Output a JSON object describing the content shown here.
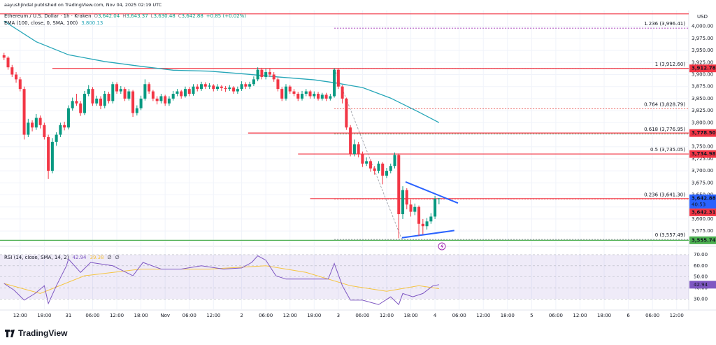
{
  "chart_data": {
    "type": "candlestick",
    "attribution": "aayushjindal published on TradingView.com, Nov 04, 2025 02:19 UTC",
    "legend": {
      "symbol": "Ethereum / U.S. Dollar · 1h · Kraken",
      "fields": [
        {
          "key": "O",
          "value": "3,642.04"
        },
        {
          "key": "H",
          "value": "3,643.37"
        },
        {
          "key": "L",
          "value": "3,630.48"
        },
        {
          "key": "C",
          "value": "3,642.88"
        }
      ],
      "change": "+0.85 (+0.02%)"
    },
    "currency": "USD",
    "brand": "TradingView",
    "up_color": "#089981",
    "down_color": "#f23645",
    "x": [
      1,
      2,
      3,
      4,
      5,
      6,
      7,
      8,
      9,
      10,
      11,
      12,
      13,
      14,
      15,
      16,
      17,
      18,
      19,
      20,
      21,
      22,
      23,
      24,
      25,
      26,
      27,
      28,
      29,
      30,
      31,
      32,
      33,
      34,
      35,
      36,
      37,
      38,
      39,
      40,
      41,
      42,
      43,
      44,
      45,
      46,
      47,
      48,
      49,
      50,
      51,
      52,
      53,
      54,
      55,
      56,
      57,
      58,
      59,
      60,
      61,
      62,
      63,
      64,
      65,
      66,
      67,
      68,
      69,
      70,
      71,
      72,
      73,
      74,
      75,
      76,
      77,
      78,
      79,
      80,
      81,
      82,
      83,
      84,
      85,
      86,
      87,
      88,
      89,
      90,
      91,
      92,
      93,
      94,
      95,
      96,
      97,
      98,
      99,
      100,
      101,
      102,
      103,
      104,
      105,
      106,
      107,
      108,
      109
    ],
    "open": [
      3940,
      3935,
      3915,
      3900,
      3890,
      3870,
      3775,
      3800,
      3790,
      3810,
      3795,
      3770,
      3700,
      3760,
      3775,
      3795,
      3790,
      3830,
      3845,
      3840,
      3820,
      3860,
      3870,
      3840,
      3850,
      3835,
      3860,
      3845,
      3880,
      3865,
      3870,
      3850,
      3865,
      3820,
      3830,
      3850,
      3880,
      3865,
      3850,
      3845,
      3855,
      3840,
      3850,
      3860,
      3865,
      3855,
      3870,
      3860,
      3875,
      3870,
      3880,
      3875,
      3877,
      3870,
      3875,
      3872,
      3870,
      3873,
      3865,
      3870,
      3880,
      3875,
      3880,
      3890,
      3910,
      3895,
      3905,
      3900,
      3890,
      3870,
      3850,
      3875,
      3865,
      3860,
      3850,
      3860,
      3865,
      3855,
      3860,
      3850,
      3858,
      3850,
      3855,
      3910,
      3875,
      3850,
      3790,
      3735,
      3755,
      3735,
      3715,
      3720,
      3705,
      3700,
      3715,
      3690,
      3700,
      3710,
      3733,
      3610,
      3660,
      3630,
      3615,
      3625,
      3590,
      3585,
      3595,
      3605,
      3642.04
    ],
    "high": [
      3945,
      3938,
      3920,
      3905,
      3895,
      3875,
      3808,
      3805,
      3818,
      3815,
      3800,
      3775,
      3768,
      3780,
      3800,
      3802,
      3836,
      3852,
      3860,
      3845,
      3866,
      3878,
      3874,
      3856,
      3855,
      3866,
      3864,
      3885,
      3884,
      3876,
      3874,
      3870,
      3868,
      3836,
      3856,
      3890,
      3884,
      3868,
      3855,
      3860,
      3858,
      3855,
      3866,
      3870,
      3868,
      3875,
      3874,
      3880,
      3880,
      3885,
      3884,
      3882,
      3880,
      3880,
      3878,
      3876,
      3878,
      3876,
      3875,
      3886,
      3884,
      3885,
      3896,
      3915,
      3914,
      3912,
      3913,
      3905,
      3894,
      3874,
      3880,
      3878,
      3870,
      3864,
      3866,
      3870,
      3868,
      3865,
      3864,
      3862,
      3862,
      3860,
      3913,
      3913,
      3878,
      3852,
      3795,
      3765,
      3760,
      3740,
      3728,
      3724,
      3710,
      3720,
      3718,
      3706,
      3715,
      3738,
      3736,
      3668,
      3664,
      3640,
      3632,
      3628,
      3600,
      3602,
      3612,
      3648,
      3643.37
    ],
    "low": [
      3930,
      3910,
      3895,
      3883,
      3865,
      3765,
      3770,
      3782,
      3785,
      3788,
      3765,
      3683,
      3695,
      3752,
      3770,
      3784,
      3786,
      3825,
      3835,
      3814,
      3816,
      3855,
      3835,
      3835,
      3828,
      3830,
      3840,
      3840,
      3860,
      3860,
      3845,
      3846,
      3812,
      3815,
      3826,
      3846,
      3860,
      3845,
      3838,
      3840,
      3835,
      3835,
      3846,
      3855,
      3850,
      3852,
      3855,
      3856,
      3865,
      3866,
      3870,
      3870,
      3865,
      3866,
      3866,
      3864,
      3866,
      3860,
      3860,
      3866,
      3870,
      3870,
      3876,
      3886,
      3890,
      3890,
      3895,
      3885,
      3865,
      3845,
      3846,
      3860,
      3855,
      3845,
      3846,
      3855,
      3850,
      3850,
      3846,
      3846,
      3845,
      3846,
      3852,
      3870,
      3840,
      3785,
      3730,
      3730,
      3728,
      3708,
      3710,
      3698,
      3692,
      3695,
      3672,
      3685,
      3695,
      3705,
      3560,
      3600,
      3620,
      3605,
      3608,
      3565,
      3568,
      3578,
      3590,
      3600,
      3630.48
    ],
    "close": [
      3935,
      3915,
      3900,
      3890,
      3870,
      3775,
      3800,
      3790,
      3810,
      3795,
      3770,
      3700,
      3760,
      3775,
      3795,
      3790,
      3830,
      3845,
      3840,
      3820,
      3860,
      3870,
      3840,
      3850,
      3835,
      3860,
      3845,
      3880,
      3865,
      3870,
      3850,
      3865,
      3820,
      3830,
      3850,
      3880,
      3865,
      3850,
      3845,
      3855,
      3840,
      3850,
      3860,
      3865,
      3855,
      3870,
      3860,
      3875,
      3870,
      3880,
      3875,
      3877,
      3870,
      3875,
      3872,
      3870,
      3873,
      3865,
      3870,
      3880,
      3875,
      3880,
      3890,
      3910,
      3895,
      3905,
      3900,
      3890,
      3870,
      3850,
      3875,
      3865,
      3860,
      3850,
      3860,
      3865,
      3855,
      3860,
      3850,
      3858,
      3850,
      3855,
      3910,
      3875,
      3850,
      3790,
      3735,
      3755,
      3735,
      3715,
      3720,
      3705,
      3700,
      3715,
      3690,
      3700,
      3710,
      3733,
      3610,
      3660,
      3630,
      3615,
      3625,
      3590,
      3585,
      3595,
      3605,
      3642,
      3642.88
    ],
    "xlim": [
      0,
      171
    ],
    "xticks": [
      {
        "value": 5,
        "label": "12:00"
      },
      {
        "value": 11,
        "label": "18:00"
      },
      {
        "value": 17,
        "label": "31"
      },
      {
        "value": 23,
        "label": "06:00"
      },
      {
        "value": 29,
        "label": "12:00"
      },
      {
        "value": 35,
        "label": "18:00"
      },
      {
        "value": 41,
        "label": "Nov"
      },
      {
        "value": 47,
        "label": "06:00"
      },
      {
        "value": 53,
        "label": "12:00"
      },
      {
        "value": 60,
        "label": "2"
      },
      {
        "value": 66,
        "label": "06:00"
      },
      {
        "value": 72,
        "label": "12:00"
      },
      {
        "value": 78,
        "label": "18:00"
      },
      {
        "value": 84,
        "label": "3"
      },
      {
        "value": 90,
        "label": "06:00"
      },
      {
        "value": 96,
        "label": "12:00"
      },
      {
        "value": 102,
        "label": "18:00"
      },
      {
        "value": 108,
        "label": "4"
      },
      {
        "value": 114,
        "label": "06:00"
      },
      {
        "value": 120,
        "label": "12:00"
      },
      {
        "value": 126,
        "label": "18:00"
      },
      {
        "value": 132,
        "label": "5"
      },
      {
        "value": 138,
        "label": "06:00"
      },
      {
        "value": 144,
        "label": "12:00"
      },
      {
        "value": 150,
        "label": "18:00"
      },
      {
        "value": 156,
        "label": "6"
      },
      {
        "value": 162,
        "label": "06:00"
      },
      {
        "value": 168,
        "label": "12:00"
      }
    ],
    "ylim": [
      3549,
      4033
    ],
    "yticks": [
      {
        "value": 3575,
        "label": "3,575.00"
      },
      {
        "value": 3600,
        "label": "3,600.00"
      },
      {
        "value": 3625,
        "label": "3,625.00"
      },
      {
        "value": 3650,
        "label": "3,650.00"
      },
      {
        "value": 3675,
        "label": "3,675.00"
      },
      {
        "value": 3700,
        "label": "3,700.00"
      },
      {
        "value": 3725,
        "label": "3,725.00"
      },
      {
        "value": 3750,
        "label": "3,750.00"
      },
      {
        "value": 3775,
        "label": "3,775.00"
      },
      {
        "value": 3800,
        "label": "3,800.00"
      },
      {
        "value": 3825,
        "label": "3,825.00"
      },
      {
        "value": 3850,
        "label": "3,850.00"
      },
      {
        "value": 3875,
        "label": "3,875.00"
      },
      {
        "value": 3900,
        "label": "3,900.00"
      },
      {
        "value": 3925,
        "label": "3,925.00"
      },
      {
        "value": 3950,
        "label": "3,950.00"
      },
      {
        "value": 3975,
        "label": "3,975.00"
      },
      {
        "value": 4000,
        "label": "4,000.00"
      }
    ],
    "grid": true,
    "ema": {
      "name": "EMA (100, close, 0, SMA, 100)",
      "value_label": "3,800.13",
      "color": "#26a6b8",
      "x": [
        1,
        9,
        17,
        26,
        35,
        43,
        52,
        61,
        69,
        78,
        83,
        90,
        97,
        104,
        109
      ],
      "values": [
        4011,
        3968,
        3941,
        3927,
        3917,
        3909,
        3907,
        3901,
        3895,
        3889,
        3883,
        3873,
        3851,
        3822,
        3800.13
      ]
    },
    "levels": [
      {
        "value": 4026,
        "start": 0,
        "color": "#f23645"
      },
      {
        "value": 3912.78,
        "label": "3,912.78",
        "start": 13,
        "color": "#f23645"
      },
      {
        "value": 3778.5,
        "label": "3,778.50",
        "start": 61.6,
        "color": "#f23645"
      },
      {
        "value": 3734.98,
        "label": "3,734.98",
        "start": 74,
        "color": "#f23645"
      },
      {
        "value": 3642.31,
        "label": "3,642.31",
        "start": 77,
        "color": "#f23645"
      },
      {
        "value": 3555.74,
        "label": "3,555.74",
        "start": 0,
        "color": "#4caf50"
      }
    ],
    "last_price": {
      "value": 3642.88,
      "label": "3,642.88",
      "countdown": "40:53",
      "color": "#2962ff"
    },
    "fib": {
      "start": 83,
      "levels": [
        {
          "value": 3996.41,
          "label": "1.236 (3,996.41)",
          "color": "#9c27b0"
        },
        {
          "value": 3912.6,
          "label": "1 (3,912.60)",
          "color": "#26a6b8"
        },
        {
          "value": 3828.79,
          "label": "0.764 (3,828.79)",
          "color": "#e53935"
        },
        {
          "value": 3776.95,
          "label": "0.618 (3,776.95)",
          "color": "#4caf50"
        },
        {
          "value": 3735.05,
          "label": "0.5 (3,735.05)",
          "color": "#131722"
        },
        {
          "value": 3641.3,
          "label": "0.236 (3,641.30)",
          "color": "#e53935"
        },
        {
          "value": 3557.49,
          "label": "0 (3,557.49)",
          "color": "#787b86"
        }
      ]
    },
    "trend_lines": [
      {
        "color": "#2962ff",
        "dashed": false,
        "x": [
          100.7,
          113.7
        ],
        "y": [
          3677,
          3633
        ]
      },
      {
        "color": "#2962ff",
        "dashed": false,
        "x": [
          99.8,
          112.8
        ],
        "y": [
          3561,
          3576
        ]
      },
      {
        "color": "#9598a1",
        "dashed": true,
        "x": [
          83,
          99.8
        ],
        "y": [
          3912,
          3557
        ]
      }
    ],
    "rsi": {
      "name": "RSI (14, close, SMA, 14, 2)",
      "value_label": "42.94",
      "ma_label": "39.38",
      "extra": [
        "∅",
        "∅"
      ],
      "color": "#7e57c2",
      "ylim": [
        22,
        75
      ],
      "yticks": [
        {
          "value": 30,
          "label": "30.00"
        },
        {
          "value": 40,
          "label": "40.00"
        },
        {
          "value": 50,
          "label": "50.00"
        },
        {
          "value": 60,
          "label": "60.00"
        },
        {
          "value": 70,
          "label": "70.00"
        }
      ],
      "band": [
        30,
        70
      ],
      "x": [
        1,
        3.5,
        6,
        8.7,
        11,
        12,
        14,
        16.5,
        17,
        20,
        22.5,
        28,
        33,
        35.5,
        40,
        45,
        50,
        55.5,
        60,
        62.5,
        64,
        66,
        68.5,
        71,
        76.5,
        81.5,
        83,
        85,
        87,
        90,
        94,
        97,
        99,
        100,
        102.5,
        105,
        107.5,
        109
      ],
      "values": [
        44,
        38,
        29,
        35,
        42,
        26,
        42,
        60,
        66,
        54,
        63,
        60,
        51,
        63,
        57,
        57,
        60,
        57,
        58,
        63,
        69,
        65,
        51,
        48,
        48,
        48,
        62,
        42,
        29,
        29,
        25,
        32,
        25,
        35,
        32,
        35,
        42,
        42.94
      ],
      "ma": {
        "color": "#f5c542",
        "x": [
          1,
          10,
          21,
          35,
          52,
          66,
          76,
          87,
          96,
          104,
          109
        ],
        "values": [
          44,
          35,
          51,
          57,
          57,
          60,
          54,
          42,
          37,
          42,
          39.38
        ]
      }
    }
  }
}
